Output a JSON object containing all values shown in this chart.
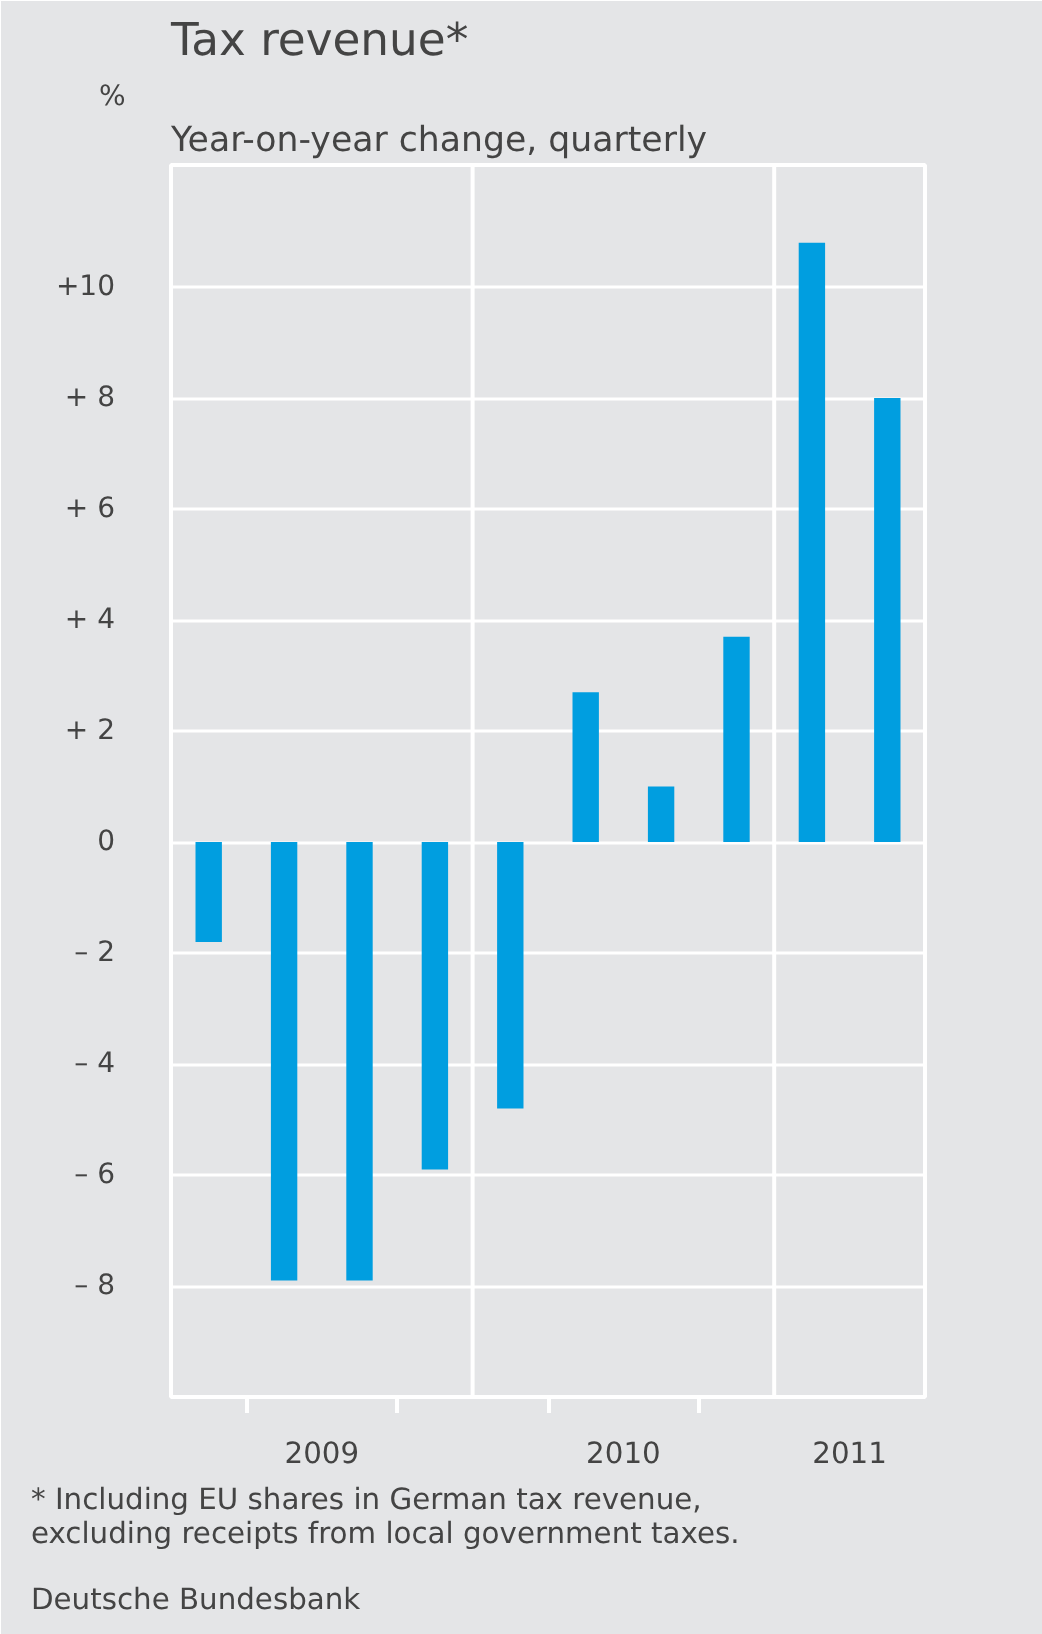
{
  "chart_data": {
    "type": "bar",
    "title": "Tax revenue*",
    "subtitle": "Year-on-year change, quarterly",
    "ylabel": "%",
    "x": [
      2009.125,
      2009.375,
      2009.625,
      2009.875,
      2010.125,
      2010.375,
      2010.625,
      2010.875,
      2011.125,
      2011.375
    ],
    "values": [
      -1.8,
      -7.9,
      -7.9,
      -5.9,
      -4.8,
      2.7,
      1.0,
      3.7,
      10.8,
      8.0
    ],
    "color": "#009ee0",
    "xlim": [
      2009,
      2011.5
    ],
    "ylim": [
      -10,
      12.2
    ],
    "xticks": [
      {
        "value": 2009.25,
        "label": null
      },
      {
        "value": 2009.5,
        "label": "2009"
      },
      {
        "value": 2009.75,
        "label": null
      },
      {
        "value": 2010.25,
        "label": null
      },
      {
        "value": 2010.5,
        "label": "2010"
      },
      {
        "value": 2010.75,
        "label": null
      },
      {
        "value": 2011.25,
        "label": "2011"
      }
    ],
    "yticks": [
      {
        "value": -8,
        "label": "– 8"
      },
      {
        "value": -6,
        "label": "– 6"
      },
      {
        "value": -4,
        "label": "– 4"
      },
      {
        "value": -2,
        "label": "– 2"
      },
      0,
      {
        "value": 2,
        "label": "+ 2"
      },
      {
        "value": 4,
        "label": "+ 4"
      },
      {
        "value": 6,
        "label": "+ 6"
      },
      {
        "value": 8,
        "label": "+ 8"
      },
      {
        "value": 10,
        "label": "+10"
      }
    ],
    "ref_lines": [
      {
        "axis": "x",
        "value": 2010,
        "label": null,
        "color": "#ffffff"
      },
      {
        "axis": "x",
        "value": 2011,
        "label": null,
        "color": "#ffffff"
      }
    ],
    "grid": "y",
    "annotations": [
      "* Including EU shares in German tax revenue, excluding receipts from local government taxes.",
      "Deutsche Bundesbank"
    ]
  }
}
